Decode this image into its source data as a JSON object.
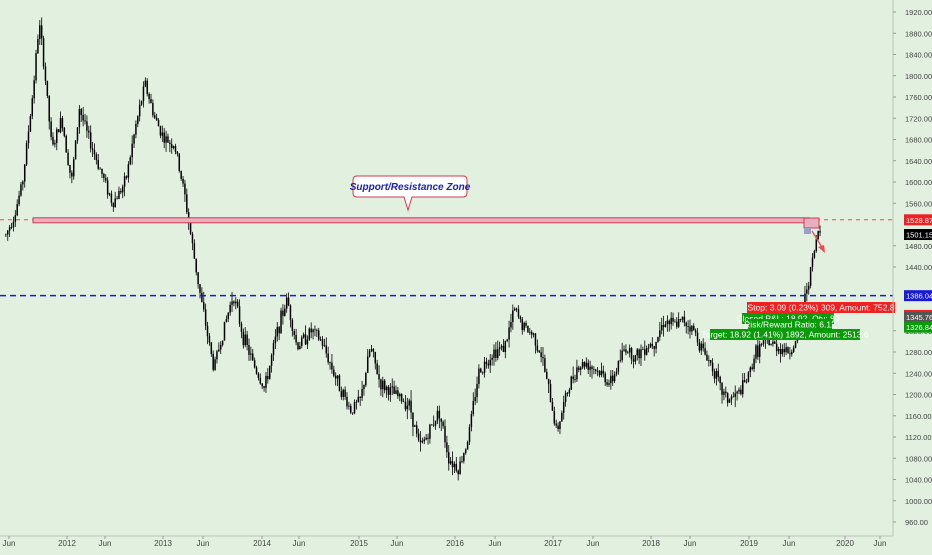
{
  "chart_data": {
    "type": "candlestick",
    "title": "",
    "xlabel": "",
    "ylabel": "",
    "ylim": [
      940,
      1935
    ],
    "x_ticks": [
      "Jun",
      "2012",
      "Jun",
      "2013",
      "Jun",
      "2014",
      "Jun",
      "2015",
      "Jun",
      "2016",
      "Jun",
      "2017",
      "Jun",
      "2018",
      "Jun",
      "2019",
      "Jun",
      "2020",
      "Jun"
    ],
    "y_ticks": [
      "1920.00",
      "1880.00",
      "1840.00",
      "1800.00",
      "1760.00",
      "1720.00",
      "1680.00",
      "1640.00",
      "1600.00",
      "1560.00",
      "1480.00",
      "1440.00",
      "1320.00",
      "1280.00",
      "1240.00",
      "1200.00",
      "1160.00",
      "1120.00",
      "1080.00",
      "1040.00",
      "1000.00",
      "960.00"
    ],
    "grid": false,
    "approx_close_path": [
      {
        "t": 2011.33,
        "v": 1500
      },
      {
        "t": 2011.42,
        "v": 1540
      },
      {
        "t": 2011.5,
        "v": 1600
      },
      {
        "t": 2011.6,
        "v": 1760
      },
      {
        "t": 2011.67,
        "v": 1900
      },
      {
        "t": 2011.72,
        "v": 1820
      },
      {
        "t": 2011.8,
        "v": 1660
      },
      {
        "t": 2011.9,
        "v": 1720
      },
      {
        "t": 2012.0,
        "v": 1600
      },
      {
        "t": 2012.08,
        "v": 1740
      },
      {
        "t": 2012.16,
        "v": 1690
      },
      {
        "t": 2012.3,
        "v": 1620
      },
      {
        "t": 2012.42,
        "v": 1560
      },
      {
        "t": 2012.55,
        "v": 1600
      },
      {
        "t": 2012.65,
        "v": 1700
      },
      {
        "t": 2012.75,
        "v": 1785
      },
      {
        "t": 2012.85,
        "v": 1720
      },
      {
        "t": 2012.95,
        "v": 1680
      },
      {
        "t": 2013.05,
        "v": 1670
      },
      {
        "t": 2013.15,
        "v": 1580
      },
      {
        "t": 2013.25,
        "v": 1460
      },
      {
        "t": 2013.32,
        "v": 1380
      },
      {
        "t": 2013.45,
        "v": 1250
      },
      {
        "t": 2013.55,
        "v": 1320
      },
      {
        "t": 2013.65,
        "v": 1390
      },
      {
        "t": 2013.75,
        "v": 1310
      },
      {
        "t": 2013.85,
        "v": 1260
      },
      {
        "t": 2013.97,
        "v": 1210
      },
      {
        "t": 2014.1,
        "v": 1320
      },
      {
        "t": 2014.2,
        "v": 1380
      },
      {
        "t": 2014.3,
        "v": 1290
      },
      {
        "t": 2014.45,
        "v": 1320
      },
      {
        "t": 2014.55,
        "v": 1300
      },
      {
        "t": 2014.7,
        "v": 1230
      },
      {
        "t": 2014.85,
        "v": 1170
      },
      {
        "t": 2014.95,
        "v": 1190
      },
      {
        "t": 2015.05,
        "v": 1290
      },
      {
        "t": 2015.15,
        "v": 1220
      },
      {
        "t": 2015.3,
        "v": 1200
      },
      {
        "t": 2015.45,
        "v": 1180
      },
      {
        "t": 2015.55,
        "v": 1100
      },
      {
        "t": 2015.62,
        "v": 1120
      },
      {
        "t": 2015.75,
        "v": 1170
      },
      {
        "t": 2015.85,
        "v": 1080
      },
      {
        "t": 2015.95,
        "v": 1060
      },
      {
        "t": 2016.05,
        "v": 1120
      },
      {
        "t": 2016.15,
        "v": 1240
      },
      {
        "t": 2016.3,
        "v": 1280
      },
      {
        "t": 2016.42,
        "v": 1290
      },
      {
        "t": 2016.52,
        "v": 1360
      },
      {
        "t": 2016.6,
        "v": 1330
      },
      {
        "t": 2016.72,
        "v": 1310
      },
      {
        "t": 2016.8,
        "v": 1270
      },
      {
        "t": 2016.9,
        "v": 1180
      },
      {
        "t": 2016.95,
        "v": 1130
      },
      {
        "t": 2017.05,
        "v": 1200
      },
      {
        "t": 2017.15,
        "v": 1250
      },
      {
        "t": 2017.25,
        "v": 1260
      },
      {
        "t": 2017.4,
        "v": 1240
      },
      {
        "t": 2017.5,
        "v": 1220
      },
      {
        "t": 2017.65,
        "v": 1290
      },
      {
        "t": 2017.75,
        "v": 1270
      },
      {
        "t": 2017.85,
        "v": 1290
      },
      {
        "t": 2017.95,
        "v": 1300
      },
      {
        "t": 2018.05,
        "v": 1340
      },
      {
        "t": 2018.15,
        "v": 1330
      },
      {
        "t": 2018.25,
        "v": 1340
      },
      {
        "t": 2018.35,
        "v": 1320
      },
      {
        "t": 2018.45,
        "v": 1280
      },
      {
        "t": 2018.55,
        "v": 1250
      },
      {
        "t": 2018.62,
        "v": 1210
      },
      {
        "t": 2018.7,
        "v": 1190
      },
      {
        "t": 2018.8,
        "v": 1200
      },
      {
        "t": 2018.9,
        "v": 1230
      },
      {
        "t": 2018.98,
        "v": 1280
      },
      {
        "t": 2019.08,
        "v": 1300
      },
      {
        "t": 2019.2,
        "v": 1290
      },
      {
        "t": 2019.32,
        "v": 1280
      },
      {
        "t": 2019.4,
        "v": 1300
      },
      {
        "t": 2019.45,
        "v": 1340
      },
      {
        "t": 2019.5,
        "v": 1400
      },
      {
        "t": 2019.55,
        "v": 1440
      },
      {
        "t": 2019.62,
        "v": 1510
      },
      {
        "t": 2019.65,
        "v": 1501
      }
    ]
  },
  "levels": {
    "support_resistance": "1528.87",
    "current_price": "1501.15",
    "blue_level": "1386.04",
    "stop": "1348.85",
    "entry": "1345.76",
    "target": "1326.84"
  },
  "annotation": {
    "zone_label": "Support/Resistance Zone"
  },
  "position_info": {
    "stop": "Stop: 3.09 (0.23%) 309, Amount: 752.8",
    "closed": "Closed P&L: 18.92, Qty: 80",
    "ratio": "Risk/Reward Ratio: 6.12",
    "target": "Target: 18.92 (1.41%) 1892, Amount: 2513.6"
  },
  "colors": {
    "background": "#e2f0e0",
    "candle": "#000000",
    "zone_fill": "#e8b0be",
    "zone_stroke": "#d23a50",
    "blue_line": "#1a1ad6",
    "red_dash": "#ef4b4b",
    "stop_box": "#ee2222",
    "target_box": "#0a9a0a",
    "current_box": "#000000",
    "blue_box": "#1a1ad6",
    "gray_box": "#555555"
  }
}
